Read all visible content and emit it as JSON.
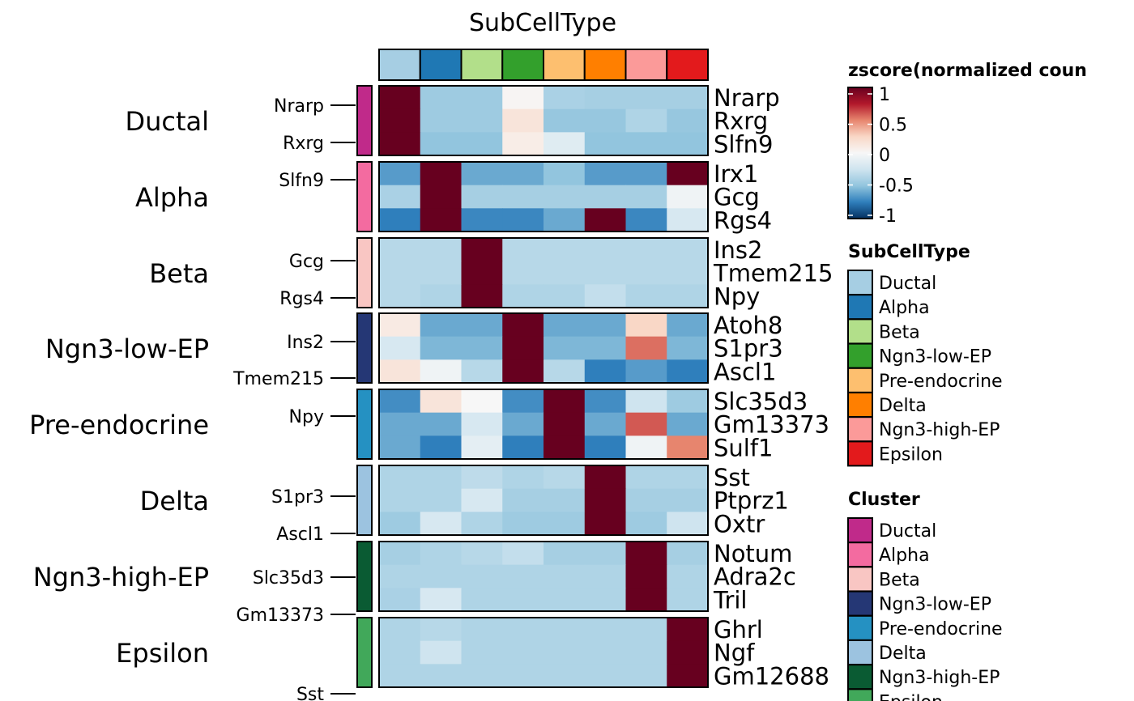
{
  "chart_data": {
    "type": "heatmap",
    "title": "SubCellType",
    "columns": [
      "Ductal",
      "Alpha",
      "Beta",
      "Ngn3-low-EP",
      "Pre-endocrine",
      "Delta",
      "Ngn3-high-EP",
      "Epsilon"
    ],
    "column_colors": [
      "#A6CEE3",
      "#1F78B4",
      "#B2DF8A",
      "#33A02C",
      "#FDBF6F",
      "#FF7F00",
      "#FB9A99",
      "#E31A1C"
    ],
    "clusters": [
      {
        "name": "Ductal",
        "color": "#C02A8A",
        "genes": [
          "Nrarp",
          "Rxrg",
          "Slfn9"
        ],
        "values": [
          [
            1,
            -0.45,
            -0.45,
            0.02,
            -0.4,
            -0.42,
            -0.42,
            -0.42
          ],
          [
            1,
            -0.45,
            -0.45,
            0.15,
            -0.48,
            -0.48,
            -0.38,
            -0.48
          ],
          [
            1,
            -0.5,
            -0.5,
            0.08,
            -0.15,
            -0.5,
            -0.5,
            -0.5
          ]
        ]
      },
      {
        "name": "Alpha",
        "color": "#F36BA0",
        "genes": [
          "Irx1",
          "Gcg",
          "Rgs4"
        ],
        "values": [
          [
            -0.65,
            1,
            -0.6,
            -0.6,
            -0.5,
            -0.65,
            -0.65,
            1
          ],
          [
            -0.4,
            1,
            -0.42,
            -0.42,
            -0.42,
            -0.42,
            -0.42,
            -0.05
          ],
          [
            -0.75,
            1,
            -0.72,
            -0.72,
            -0.6,
            1,
            -0.72,
            -0.2
          ]
        ]
      },
      {
        "name": "Beta",
        "color": "#F9C6C3",
        "genes": [
          "Ins2",
          "Tmem215",
          "Npy"
        ],
        "values": [
          [
            -0.35,
            -0.35,
            1,
            -0.35,
            -0.35,
            -0.35,
            -0.35,
            -0.35
          ],
          [
            -0.35,
            -0.35,
            1,
            -0.35,
            -0.35,
            -0.35,
            -0.35,
            -0.35
          ],
          [
            -0.35,
            -0.38,
            1,
            -0.38,
            -0.38,
            -0.3,
            -0.38,
            -0.38
          ]
        ]
      },
      {
        "name": "Ngn3-low-EP",
        "color": "#253775",
        "genes": [
          "Atoh8",
          "S1pr3",
          "Ascl1"
        ],
        "values": [
          [
            0.1,
            -0.6,
            -0.6,
            1,
            -0.6,
            -0.6,
            0.25,
            -0.6
          ],
          [
            -0.2,
            -0.55,
            -0.55,
            1,
            -0.55,
            -0.55,
            0.55,
            -0.55
          ],
          [
            0.15,
            -0.05,
            -0.35,
            1,
            -0.35,
            -0.75,
            -0.65,
            -0.75
          ]
        ]
      },
      {
        "name": "Pre-endocrine",
        "color": "#2591C2",
        "genes": [
          "Slc35d3",
          "Gm13373",
          "Sulf1"
        ],
        "values": [
          [
            -0.7,
            0.15,
            0.0,
            -0.7,
            1,
            -0.7,
            -0.25,
            -0.45
          ],
          [
            -0.6,
            -0.6,
            -0.2,
            -0.6,
            1,
            -0.6,
            0.6,
            -0.6
          ],
          [
            -0.6,
            -0.75,
            -0.12,
            -0.75,
            1,
            -0.75,
            -0.05,
            0.5
          ]
        ]
      },
      {
        "name": "Delta",
        "color": "#9CC3E0",
        "genes": [
          "Sst",
          "Ptprz1",
          "Oxtr"
        ],
        "values": [
          [
            -0.38,
            -0.38,
            -0.32,
            -0.38,
            -0.35,
            1,
            -0.38,
            -0.38
          ],
          [
            -0.38,
            -0.38,
            -0.2,
            -0.42,
            -0.42,
            1,
            -0.42,
            -0.42
          ],
          [
            -0.45,
            -0.2,
            -0.38,
            -0.45,
            -0.45,
            1,
            -0.45,
            -0.25
          ]
        ]
      },
      {
        "name": "Ngn3-high-EP",
        "color": "#0A5B33",
        "genes": [
          "Notum",
          "Adra2c",
          "Tril"
        ],
        "values": [
          [
            -0.42,
            -0.38,
            -0.35,
            -0.3,
            -0.42,
            -0.42,
            1,
            -0.42
          ],
          [
            -0.38,
            -0.38,
            -0.38,
            -0.38,
            -0.38,
            -0.38,
            1,
            -0.38
          ],
          [
            -0.4,
            -0.2,
            -0.38,
            -0.38,
            -0.38,
            -0.38,
            1,
            -0.38
          ]
        ]
      },
      {
        "name": "Epsilon",
        "color": "#41A85A",
        "genes": [
          "Ghrl",
          "Ngf",
          "Gm12688"
        ],
        "values": [
          [
            -0.38,
            -0.35,
            -0.38,
            -0.38,
            -0.38,
            -0.38,
            -0.38,
            1
          ],
          [
            -0.38,
            -0.25,
            -0.38,
            -0.38,
            -0.38,
            -0.38,
            -0.38,
            1
          ],
          [
            -0.38,
            -0.38,
            -0.38,
            -0.38,
            -0.38,
            -0.38,
            -0.38,
            1
          ]
        ]
      }
    ],
    "mark_labels": [
      "Nrarp",
      "Rxrg",
      "Slfn9",
      "Gcg",
      "Rgs4",
      "Ins2",
      "Tmem215",
      "Npy",
      "S1pr3",
      "Ascl1",
      "Slc35d3",
      "Gm13373",
      "Sst"
    ],
    "color_scale": {
      "title": "zscore(normalized coun",
      "ticks": [
        "1",
        "0.5",
        "0",
        "-0.5",
        "-1"
      ],
      "min": -1,
      "max": 1
    },
    "legends": {
      "subcelltype_title": "SubCellType",
      "cluster_title": "Cluster"
    }
  }
}
